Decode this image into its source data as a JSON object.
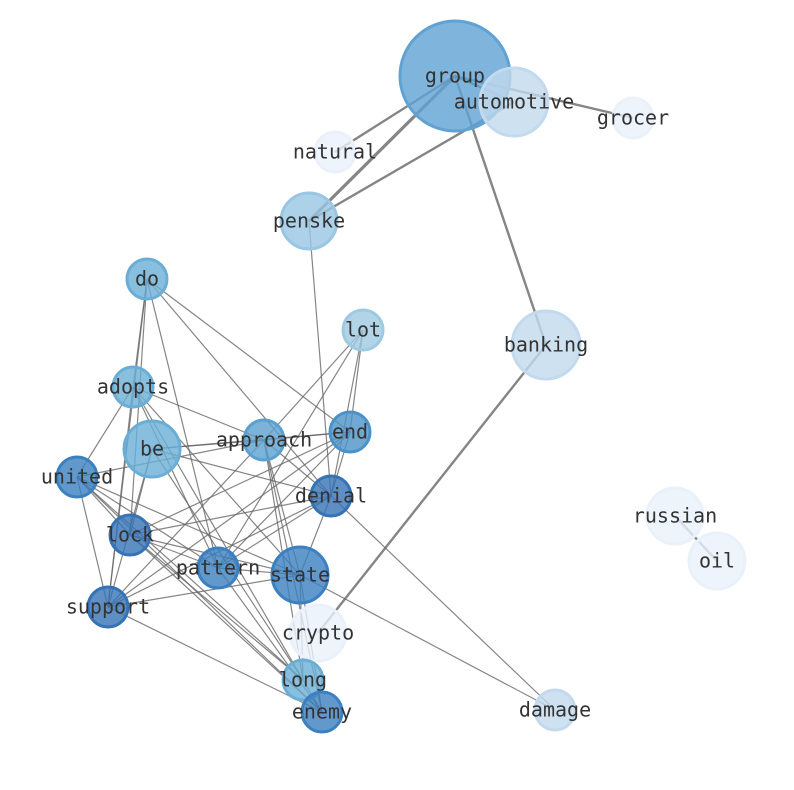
{
  "nodes": [
    {
      "id": "group",
      "label": "group",
      "color": "#5fa2d3"
    },
    {
      "id": "automotive",
      "label": "automotive",
      "color": "#c2d9ee"
    },
    {
      "id": "grocer",
      "label": "grocer",
      "color": "#eaf1fb"
    },
    {
      "id": "natural",
      "label": "natural",
      "color": "#eaf1fb"
    },
    {
      "id": "penske",
      "label": "penske",
      "color": "#99c6e3"
    },
    {
      "id": "do",
      "label": "do",
      "color": "#6aaed6"
    },
    {
      "id": "lot",
      "label": "lot",
      "color": "#9ecae1"
    },
    {
      "id": "banking",
      "label": "banking",
      "color": "#c2d9ee"
    },
    {
      "id": "adopts",
      "label": "adopts",
      "color": "#6aaed6"
    },
    {
      "id": "be",
      "label": "be",
      "color": "#6aaed6"
    },
    {
      "id": "approach",
      "label": "approach",
      "color": "#5aa0d0"
    },
    {
      "id": "end",
      "label": "end",
      "color": "#4a92c8"
    },
    {
      "id": "united",
      "label": "united",
      "color": "#3b80c0"
    },
    {
      "id": "denial",
      "label": "denial",
      "color": "#3573b6"
    },
    {
      "id": "lock",
      "label": "lock",
      "color": "#3573b6"
    },
    {
      "id": "pattern",
      "label": "pattern",
      "color": "#3b80c0"
    },
    {
      "id": "state",
      "label": "state",
      "color": "#3b80c0"
    },
    {
      "id": "support",
      "label": "support",
      "color": "#3573b6"
    },
    {
      "id": "crypto",
      "label": "crypto",
      "color": "#eaf1fb"
    },
    {
      "id": "long",
      "label": "long",
      "color": "#6aaed6"
    },
    {
      "id": "enemy",
      "label": "enemy",
      "color": "#3b80c0"
    },
    {
      "id": "damage",
      "label": "damage",
      "color": "#c2d9ee"
    },
    {
      "id": "russian",
      "label": "russian",
      "color": "#eaf1fb"
    },
    {
      "id": "oil",
      "label": "oil",
      "color": "#eaf1fb"
    }
  ],
  "edges": [
    [
      "group",
      "automotive",
      2
    ],
    [
      "group",
      "grocer",
      2
    ],
    [
      "group",
      "natural",
      2
    ],
    [
      "group",
      "penske",
      3
    ],
    [
      "automotive",
      "penske",
      2
    ],
    [
      "group",
      "banking",
      2
    ],
    [
      "banking",
      "crypto",
      2
    ],
    [
      "russian",
      "oil",
      2
    ],
    [
      "penske",
      "denial",
      1
    ],
    [
      "denial",
      "damage",
      1
    ],
    [
      "state",
      "damage",
      1
    ],
    [
      "do",
      "adopts",
      1
    ],
    [
      "do",
      "lock",
      1
    ],
    [
      "do",
      "support",
      1
    ],
    [
      "do",
      "pattern",
      1
    ],
    [
      "do",
      "denial",
      1
    ],
    [
      "do",
      "end",
      1
    ],
    [
      "adopts",
      "united",
      1
    ],
    [
      "adopts",
      "approach",
      1
    ],
    [
      "adopts",
      "pattern",
      1
    ],
    [
      "adopts",
      "state",
      1
    ],
    [
      "adopts",
      "support",
      1
    ],
    [
      "adopts",
      "long",
      1
    ],
    [
      "be",
      "approach",
      1
    ],
    [
      "be",
      "end",
      1
    ],
    [
      "be",
      "denial",
      1
    ],
    [
      "be",
      "lock",
      1
    ],
    [
      "be",
      "support",
      1
    ],
    [
      "be",
      "long",
      1
    ],
    [
      "united",
      "approach",
      1
    ],
    [
      "united",
      "lock",
      1
    ],
    [
      "united",
      "support",
      1
    ],
    [
      "united",
      "pattern",
      1
    ],
    [
      "united",
      "state",
      1
    ],
    [
      "united",
      "long",
      1
    ],
    [
      "united",
      "enemy",
      1
    ],
    [
      "lot",
      "approach",
      1
    ],
    [
      "lot",
      "pattern",
      1
    ],
    [
      "lot",
      "denial",
      1
    ],
    [
      "lot",
      "end",
      1
    ],
    [
      "approach",
      "state",
      1
    ],
    [
      "approach",
      "long",
      1
    ],
    [
      "approach",
      "enemy",
      1
    ],
    [
      "approach",
      "denial",
      1
    ],
    [
      "approach",
      "support",
      1
    ],
    [
      "end",
      "lock",
      1
    ],
    [
      "end",
      "support",
      1
    ],
    [
      "end",
      "pattern",
      1
    ],
    [
      "end",
      "denial",
      1
    ],
    [
      "end",
      "approach",
      1
    ],
    [
      "denial",
      "lock",
      1
    ],
    [
      "denial",
      "support",
      1
    ],
    [
      "denial",
      "pattern",
      1
    ],
    [
      "denial",
      "state",
      1
    ],
    [
      "lock",
      "pattern",
      1
    ],
    [
      "lock",
      "state",
      1
    ],
    [
      "lock",
      "long",
      1
    ],
    [
      "lock",
      "enemy",
      1
    ],
    [
      "pattern",
      "state",
      1
    ],
    [
      "pattern",
      "enemy",
      1
    ],
    [
      "support",
      "state",
      1
    ],
    [
      "support",
      "enemy",
      1
    ],
    [
      "state",
      "long",
      1
    ],
    [
      "state",
      "enemy",
      1
    ],
    [
      "long",
      "enemy",
      1
    ]
  ]
}
